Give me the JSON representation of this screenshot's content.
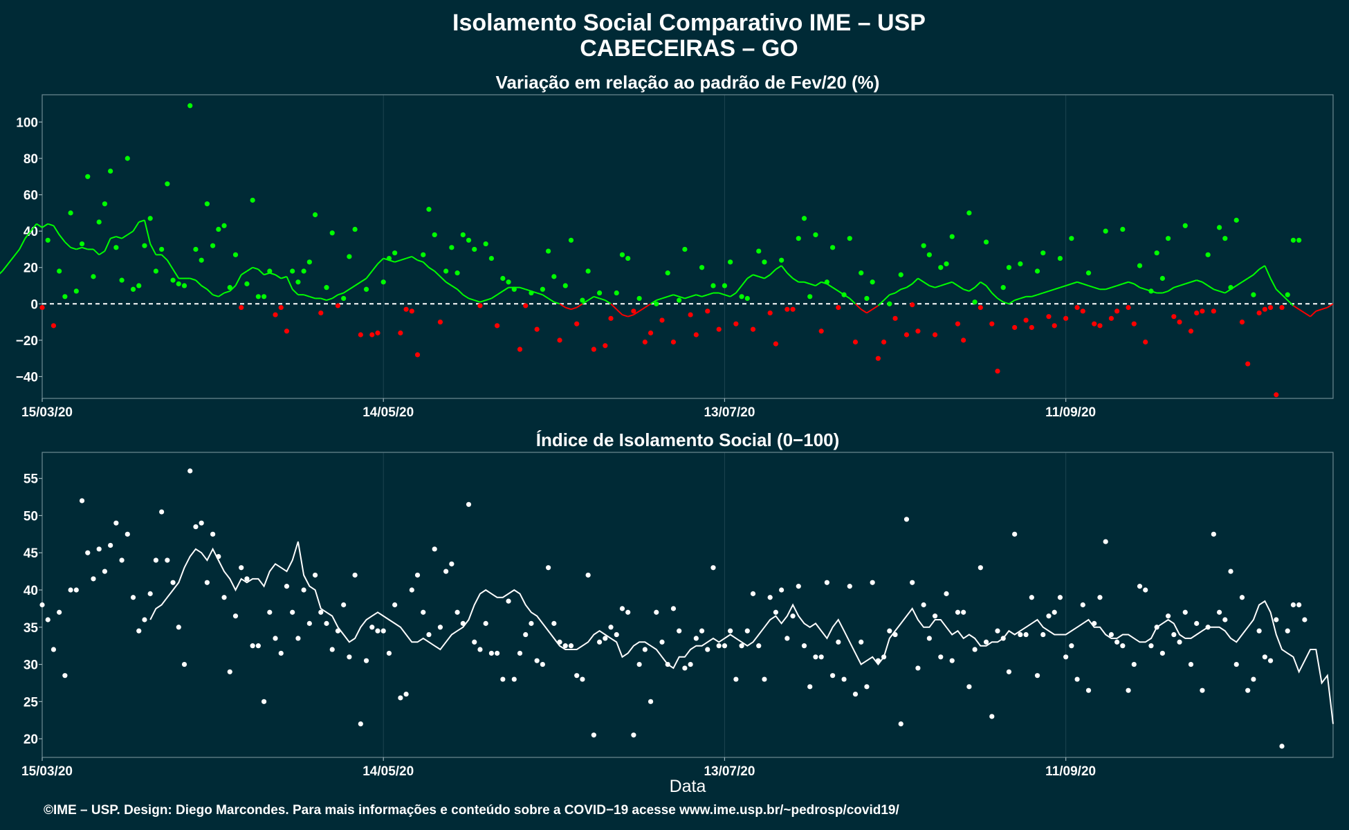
{
  "header": {
    "title": "Isolamento Social Comparativo IME – USP",
    "subtitle": "CABECEIRAS – GO"
  },
  "footer": {
    "credit": "©IME – USP. Design: Diego Marcondes. Para mais informações e conteúdo sobre a COVID−19 acesse www.ime.usp.br/~pedrosp/covid19/"
  },
  "colors": {
    "background": "#002a36",
    "positive": "#00ff00",
    "negative": "#ff0000",
    "index_points": "#ffffff",
    "zero_line": "#ffffff"
  },
  "chart_data": [
    {
      "type": "scatter",
      "title": "Variação em relação ao padrão de Fev/20 (%)",
      "xlabel": "",
      "ylabel": "",
      "x_tick_labels": [
        "15/03/20",
        "14/05/20",
        "13/07/20",
        "11/09/20"
      ],
      "y_ticks": [
        -40,
        -20,
        0,
        20,
        40,
        60,
        80,
        100
      ],
      "y_tick_labels": [
        "−40",
        "−20",
        "0",
        "20",
        "40",
        "60",
        "80",
        "100"
      ],
      "ylim": [
        -52,
        115
      ],
      "xlim_days": [
        0,
        227
      ],
      "reference_line": 0,
      "grid": true,
      "series": [
        {
          "values": [
            -2,
            35,
            -12,
            18,
            4,
            50,
            7,
            33,
            70,
            15,
            45,
            55,
            73,
            31,
            13,
            80,
            8,
            10,
            32,
            47,
            18,
            30,
            66,
            13,
            11,
            10,
            109,
            30,
            24,
            55,
            32,
            41,
            43,
            9,
            27,
            -2,
            11,
            57,
            4,
            4,
            18,
            -6,
            -2,
            -15,
            18,
            12,
            18,
            23,
            49,
            -5,
            9,
            39,
            -1,
            3,
            26,
            41,
            -17,
            8,
            -17,
            -16,
            12,
            25,
            28,
            -16,
            -3,
            -4,
            -28,
            27,
            52,
            38,
            -10,
            18,
            31,
            17,
            38,
            35,
            30,
            -1,
            33,
            25,
            -12,
            14,
            12,
            8,
            -25,
            -1,
            6,
            -14,
            8,
            29,
            15,
            -20,
            10,
            35,
            -11,
            2,
            18,
            -25,
            6,
            -23,
            -8,
            6,
            27,
            25,
            -4,
            3,
            -21,
            -16,
            0,
            -9,
            17,
            -21,
            2,
            30,
            -6,
            -17,
            20,
            -4,
            10,
            -14,
            10,
            23,
            -11,
            4,
            3,
            -14,
            29,
            23,
            -5,
            -22,
            24,
            -3,
            -3,
            36,
            47,
            4,
            38,
            -15,
            12,
            31,
            -2,
            5,
            36,
            -21,
            17,
            3,
            12,
            -30,
            -21,
            0,
            -8,
            16,
            -17,
            -0.5,
            -15,
            32,
            27,
            -17,
            20,
            22,
            37,
            -11,
            -20,
            50,
            1,
            -2,
            34,
            -11,
            -37,
            9,
            20,
            -13,
            22,
            -9,
            -13,
            18,
            28,
            -7,
            -12,
            25,
            -8,
            36,
            -2,
            -4,
            17,
            -11,
            -12,
            40,
            -8,
            -4,
            41,
            -2,
            -11,
            21,
            -21,
            7,
            28,
            14,
            36,
            -7,
            -10,
            43,
            -15,
            -5,
            -4,
            27,
            -4,
            42,
            36,
            9,
            46,
            -10,
            -33,
            5,
            -5,
            -3,
            -2,
            -50,
            -2,
            5,
            35,
            35
          ]
        },
        {
          "values": [
            20,
            16,
            18,
            15,
            18,
            22,
            26,
            30,
            36,
            40,
            44,
            42,
            44,
            43,
            38,
            34,
            31,
            30,
            31,
            30,
            30,
            27,
            29,
            36,
            37,
            36,
            38,
            40,
            45,
            46,
            33,
            27,
            27,
            24,
            19,
            14,
            14,
            14,
            13,
            10,
            8,
            5,
            4,
            6,
            7,
            10,
            16,
            18,
            20,
            19,
            16,
            17,
            16,
            14,
            15,
            8,
            5,
            5,
            4,
            3,
            3,
            2,
            3,
            5,
            6,
            8,
            10,
            12,
            14,
            18,
            22,
            25,
            24,
            23,
            24,
            25,
            26,
            24,
            23,
            20,
            18,
            15,
            12,
            10,
            8,
            5,
            3,
            2,
            1,
            2,
            3,
            5,
            7,
            9,
            9,
            9,
            8,
            7,
            6,
            5,
            3,
            1,
            0,
            -2,
            -3,
            -2,
            0,
            2,
            4,
            3,
            2,
            0,
            -3,
            -6,
            -7,
            -6,
            -4,
            -2,
            0,
            2,
            3,
            4,
            5,
            4,
            3,
            4,
            5,
            4,
            5,
            6,
            6,
            5,
            4,
            6,
            10,
            14,
            16,
            15,
            14,
            16,
            19,
            21,
            17,
            14,
            12,
            12,
            11,
            10,
            12,
            11,
            9,
            7,
            5,
            3,
            0,
            -3,
            -5,
            -3,
            -1,
            2,
            5,
            6,
            8,
            9,
            11,
            14,
            12,
            10,
            9,
            10,
            11,
            12,
            10,
            8,
            7,
            9,
            12,
            10,
            6,
            3,
            1,
            0,
            2,
            3,
            4,
            4,
            5,
            6,
            7,
            8,
            9,
            10,
            11,
            12,
            11,
            10,
            9,
            8,
            8,
            9,
            10,
            11,
            12,
            11,
            9,
            8,
            7,
            6,
            6,
            7,
            9,
            10,
            11,
            12,
            13,
            12,
            10,
            8,
            7,
            6,
            8,
            10,
            12,
            14,
            16,
            19,
            21,
            14,
            8,
            5,
            2,
            -1,
            -3,
            -5,
            -7,
            -4,
            -3,
            -2,
            0
          ]
        }
      ]
    },
    {
      "type": "scatter",
      "title": "Índice de Isolamento Social (0−100)",
      "xlabel": "Data",
      "ylabel": "",
      "x_tick_labels": [
        "15/03/20",
        "14/05/20",
        "13/07/20",
        "11/09/20"
      ],
      "y_ticks": [
        20,
        25,
        30,
        35,
        40,
        45,
        50,
        55
      ],
      "y_tick_labels": [
        "20",
        "25",
        "30",
        "35",
        "40",
        "45",
        "50",
        "55"
      ],
      "ylim": [
        17.5,
        58.5
      ],
      "xlim_days": [
        0,
        227
      ],
      "grid": true,
      "series": [
        {
          "values": [
            38,
            36,
            32,
            37,
            28.5,
            40,
            40,
            52,
            45,
            41.5,
            45.5,
            42.5,
            46,
            49,
            44,
            47.5,
            39,
            34.5,
            36,
            39.5,
            44,
            50.5,
            44,
            41,
            35,
            30,
            56,
            48.5,
            49,
            41,
            47.5,
            44.5,
            39,
            29,
            36.5,
            43,
            41.5,
            32.5,
            32.5,
            25,
            37,
            33.5,
            31.5,
            40.5,
            37,
            33.5,
            40,
            35.5,
            42,
            37,
            35.5,
            32,
            34.5,
            38,
            31,
            42,
            22,
            30.5,
            35,
            34.5,
            34.5,
            31.5,
            38,
            25.5,
            26,
            40,
            42,
            37,
            34,
            45.5,
            35,
            42.5,
            43.5,
            37,
            35.5,
            51.5,
            33,
            32,
            35.5,
            31.5,
            31.5,
            28,
            38.5,
            28,
            31.5,
            34,
            35.5,
            30.5,
            30,
            43,
            35.5,
            33,
            32.5,
            32.5,
            28.5,
            28,
            42,
            20.5,
            33,
            33.5,
            35,
            34,
            37.5,
            37,
            20.5,
            30,
            32,
            25,
            37,
            33,
            30,
            37.5,
            34.5,
            29.5,
            30,
            33.5,
            34.5,
            32,
            43,
            32.5,
            32.5,
            34.5,
            28,
            32.5,
            34.5,
            39.5,
            32.5,
            28,
            39,
            37,
            40,
            33.5,
            36.5,
            40.5,
            32.5,
            27,
            31,
            31,
            41,
            28.5,
            33,
            28,
            40.5,
            26,
            33,
            27,
            41,
            30.5,
            31,
            34.5,
            34,
            22,
            49.5,
            41,
            29.5,
            38,
            33.5,
            36.5,
            31,
            39.5,
            30.5,
            37,
            37,
            27,
            32,
            43,
            33,
            23,
            34.5,
            33.5,
            29,
            47.5,
            34,
            34,
            39,
            28.5,
            34,
            36.5,
            37,
            39,
            31,
            32.5,
            28,
            38,
            26.5,
            35.5,
            39,
            46.5,
            34,
            33,
            32.5,
            26.5,
            30,
            40.5,
            40,
            32.5,
            35,
            31.5,
            36.5,
            34,
            33,
            37,
            30,
            35.5,
            26.5,
            35,
            47.5,
            37,
            36,
            42.5,
            30,
            39,
            26.5,
            28,
            34.5,
            31,
            30.5,
            36,
            19,
            34.5,
            38,
            38,
            36
          ]
        },
        {
          "values": [
            36,
            37.5,
            38,
            39,
            40,
            41,
            43,
            44.5,
            45.5,
            45,
            44,
            45.5,
            44,
            42.5,
            41.5,
            40,
            41.5,
            41,
            41.5,
            41.5,
            40.5,
            42.5,
            43.5,
            43,
            42.5,
            44,
            46.5,
            42,
            40.5,
            40,
            37.5,
            37,
            36.5,
            35,
            34,
            33,
            33.5,
            35,
            36,
            36.5,
            37,
            36.5,
            36,
            35.5,
            35,
            34,
            33,
            33,
            33.5,
            33,
            32.5,
            32,
            33,
            34,
            34.5,
            35,
            36,
            38,
            39.5,
            40,
            39.5,
            39,
            39,
            39.5,
            40,
            39.5,
            38,
            37,
            36.5,
            35.5,
            34.5,
            33.5,
            32.5,
            32,
            32,
            32,
            32.5,
            33,
            34,
            34.5,
            34,
            33.5,
            33,
            31,
            31.5,
            32.5,
            33,
            33,
            32.5,
            32,
            31,
            30,
            29.5,
            31,
            31,
            32,
            32.5,
            32.5,
            33,
            33.5,
            33,
            33.5,
            34,
            33.5,
            33,
            32.5,
            33,
            34,
            35,
            36,
            36.5,
            35.5,
            36.5,
            38,
            36.5,
            35.5,
            35,
            35.5,
            34.5,
            33.5,
            35,
            36,
            34.5,
            33,
            31.5,
            30,
            30.5,
            31,
            30,
            31,
            33.5,
            34.5,
            35.5,
            36.5,
            37.5,
            36,
            35,
            35,
            36,
            36,
            35,
            34,
            34.5,
            33.5,
            34,
            33.5,
            32.5,
            32.5,
            33,
            33,
            33.5,
            34.5,
            34,
            34.5,
            35,
            35.5,
            36,
            35,
            34.5,
            34,
            34,
            34,
            34.5,
            35,
            35.5,
            36,
            35,
            35,
            34,
            33.5,
            33.5,
            34,
            34,
            33.5,
            33,
            33,
            33.5,
            35,
            35.5,
            36,
            35.5,
            34,
            33.5,
            33.5,
            34,
            34.5,
            35,
            35,
            35,
            34.5,
            33.5,
            33,
            34,
            35,
            36,
            38,
            38.5,
            37,
            34,
            32,
            31.5,
            31,
            29,
            30.5,
            32,
            32,
            27.5,
            28.5,
            22
          ]
        }
      ]
    }
  ]
}
